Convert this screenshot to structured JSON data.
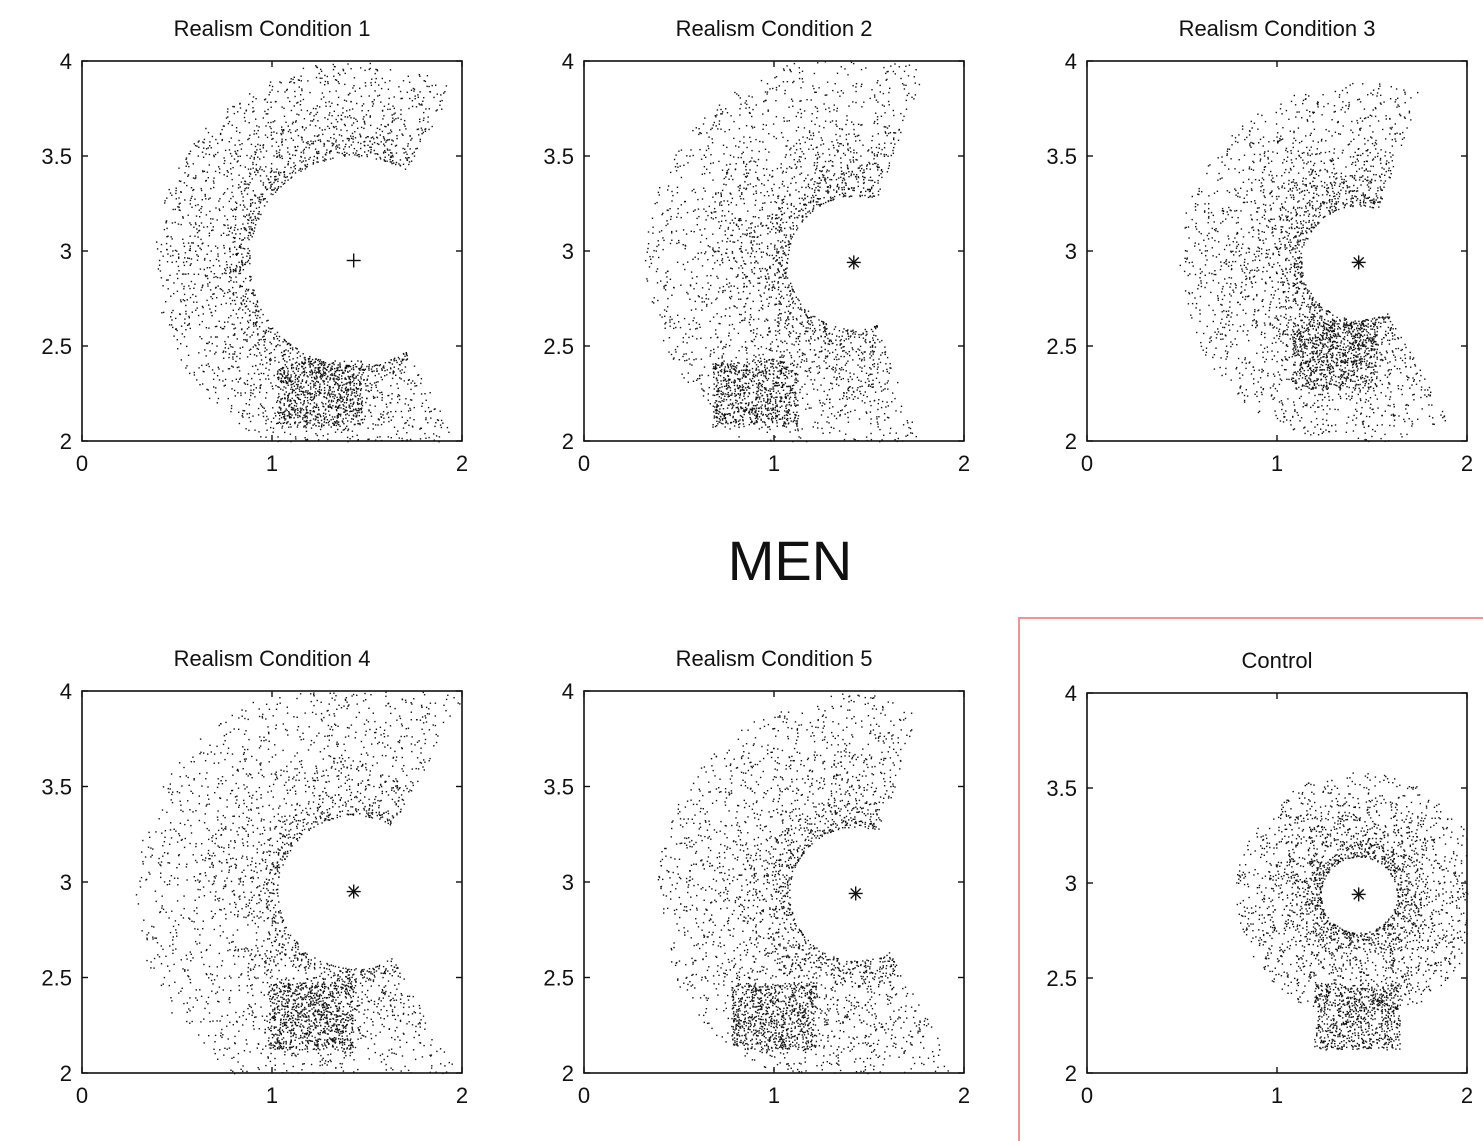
{
  "figure": {
    "center_title": "MEN",
    "highlight_color": "#e23b3b",
    "ink_color": "#111111"
  },
  "chart_data": [
    {
      "type": "scatter",
      "title": "Realism Condition 1",
      "xlim": [
        0,
        2
      ],
      "ylim": [
        2,
        4
      ],
      "xticks": [
        "0",
        "1",
        "2"
      ],
      "yticks": [
        "2",
        "2.5",
        "3",
        "3.5",
        "4"
      ],
      "grid": false,
      "marker": {
        "symbol": "+",
        "x": 1.43,
        "y": 2.95
      },
      "density": {
        "arc_center": [
          1.43,
          2.95
        ],
        "radius_inner": 0.55,
        "radius_outer": 1.05,
        "angle_from_deg": 60,
        "angle_to_deg": 300,
        "dense_spot": [
          1.25,
          2.25
        ]
      }
    },
    {
      "type": "scatter",
      "title": "Realism Condition 2",
      "xlim": [
        0,
        2
      ],
      "ylim": [
        2,
        4
      ],
      "xticks": [
        "0",
        "1",
        "2"
      ],
      "yticks": [
        "2",
        "2.5",
        "3",
        "3.5",
        "4"
      ],
      "grid": false,
      "marker": {
        "symbol": "*",
        "x": 1.42,
        "y": 2.94
      },
      "density": {
        "arc_center": [
          1.42,
          2.94
        ],
        "radius_inner": 0.35,
        "radius_outer": 1.1,
        "angle_from_deg": 70,
        "angle_to_deg": 290,
        "dense_spot": [
          0.9,
          2.25
        ]
      }
    },
    {
      "type": "scatter",
      "title": "Realism Condition 3",
      "xlim": [
        0,
        2
      ],
      "ylim": [
        2,
        4
      ],
      "xticks": [
        "0",
        "1",
        "2"
      ],
      "yticks": [
        "2",
        "2.5",
        "3",
        "3.5",
        "4"
      ],
      "grid": false,
      "marker": {
        "symbol": "*",
        "x": 1.43,
        "y": 2.94
      },
      "density": {
        "arc_center": [
          1.43,
          2.94
        ],
        "radius_inner": 0.3,
        "radius_outer": 0.95,
        "angle_from_deg": 70,
        "angle_to_deg": 300,
        "dense_spot": [
          1.3,
          2.45
        ]
      }
    },
    {
      "type": "scatter",
      "title": "Realism Condition 4",
      "xlim": [
        0,
        2
      ],
      "ylim": [
        2,
        4
      ],
      "xticks": [
        "0",
        "1",
        "2"
      ],
      "yticks": [
        "2",
        "2.5",
        "3",
        "3.5",
        "4"
      ],
      "grid": false,
      "marker": {
        "symbol": "*",
        "x": 1.43,
        "y": 2.95
      },
      "density": {
        "arc_center": [
          1.43,
          2.95
        ],
        "radius_inner": 0.4,
        "radius_outer": 1.15,
        "angle_from_deg": 60,
        "angle_to_deg": 300,
        "dense_spot": [
          1.2,
          2.3
        ]
      }
    },
    {
      "type": "scatter",
      "title": "Realism Condition 5",
      "xlim": [
        0,
        2
      ],
      "ylim": [
        2,
        4
      ],
      "xticks": [
        "0",
        "1",
        "2"
      ],
      "yticks": [
        "2",
        "2.5",
        "3",
        "3.5",
        "4"
      ],
      "grid": false,
      "marker": {
        "symbol": "*",
        "x": 1.43,
        "y": 2.94
      },
      "density": {
        "arc_center": [
          1.43,
          2.94
        ],
        "radius_inner": 0.35,
        "radius_outer": 1.05,
        "angle_from_deg": 70,
        "angle_to_deg": 300,
        "dense_spot": [
          1.0,
          2.3
        ]
      }
    },
    {
      "type": "scatter",
      "title": "Control",
      "xlim": [
        0,
        2
      ],
      "ylim": [
        2,
        4
      ],
      "xticks": [
        "0",
        "1",
        "2"
      ],
      "yticks": [
        "2",
        "2.5",
        "3",
        "3.5",
        "4"
      ],
      "grid": false,
      "highlighted": true,
      "marker": {
        "symbol": "*",
        "x": 1.43,
        "y": 2.94
      },
      "density": {
        "arc_center": [
          1.43,
          2.94
        ],
        "radius_inner": 0.2,
        "radius_outer": 0.65,
        "angle_from_deg": 0,
        "angle_to_deg": 360,
        "dense_spot": [
          1.42,
          2.3
        ]
      }
    }
  ]
}
